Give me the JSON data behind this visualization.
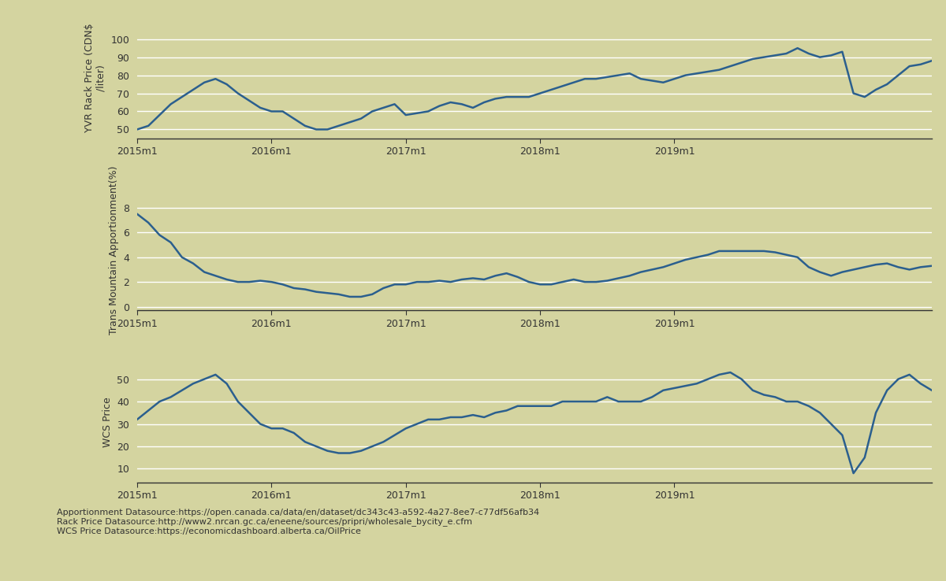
{
  "background_color": "#d4d4a0",
  "line_color": "#2b5f8e",
  "line_width": 1.8,
  "label_fontsize": 9,
  "tick_fontsize": 9,
  "footer_fontsize": 8,
  "footer_text": "Apportionment Datasource:https://open.canada.ca/data/en/dataset/dc343c43-a592-4a27-8ee7-c77df56afb34\nRack Price Datasource:http://www2.nrcan.gc.ca/eneene/sources/pripri/wholesale_bycity_e.cfm\nWCS Price Datasource:https://economicdashboard.alberta.ca/OilPrice",
  "x_tick_labels": [
    "2015m1",
    "2016m1",
    "2017m1",
    "2018m1",
    "2019m1"
  ],
  "x_tick_positions": [
    0,
    12,
    24,
    36,
    48
  ],
  "panel1_ylabel": "YVR Rack Price (CDN$\n/liter)",
  "panel2_ylabel": "Trans Mountain Apportionment(%)",
  "panel3_ylabel": "WCS Price",
  "panel1_ylim": [
    45,
    112
  ],
  "panel1_yticks": [
    50,
    60,
    70,
    80,
    90,
    100
  ],
  "panel2_ylim": [
    -0.3,
    9.5
  ],
  "panel2_yticks": [
    0,
    2,
    4,
    6,
    8
  ],
  "panel3_ylim": [
    4,
    58
  ],
  "panel3_yticks": [
    10,
    20,
    30,
    40,
    50
  ],
  "yvr_rack": [
    50,
    52,
    58,
    64,
    68,
    72,
    76,
    78,
    75,
    70,
    66,
    62,
    60,
    60,
    56,
    52,
    50,
    50,
    52,
    54,
    56,
    60,
    62,
    64,
    58,
    59,
    60,
    63,
    65,
    64,
    62,
    65,
    67,
    68,
    68,
    68,
    70,
    72,
    74,
    76,
    78,
    78,
    79,
    80,
    81,
    78,
    77,
    76,
    78,
    80,
    81,
    82,
    83,
    85,
    87,
    89,
    90,
    91,
    92,
    95,
    92,
    90,
    91,
    93,
    70,
    68,
    72,
    75,
    80,
    85,
    86,
    88
  ],
  "apportionment": [
    7.5,
    6.8,
    5.8,
    5.2,
    4.0,
    3.5,
    2.8,
    2.5,
    2.2,
    2.0,
    2.0,
    2.1,
    2.0,
    1.8,
    1.5,
    1.4,
    1.2,
    1.1,
    1.0,
    0.8,
    0.8,
    1.0,
    1.5,
    1.8,
    1.8,
    2.0,
    2.0,
    2.1,
    2.0,
    2.2,
    2.3,
    2.2,
    2.5,
    2.7,
    2.4,
    2.0,
    1.8,
    1.8,
    2.0,
    2.2,
    2.0,
    2.0,
    2.1,
    2.3,
    2.5,
    2.8,
    3.0,
    3.2,
    3.5,
    3.8,
    4.0,
    4.2,
    4.5,
    4.5,
    4.5,
    4.5,
    4.5,
    4.4,
    4.2,
    4.0,
    3.2,
    2.8,
    2.5,
    2.8,
    3.0,
    3.2,
    3.4,
    3.5,
    3.2,
    3.0,
    3.2,
    3.3
  ],
  "wcs_price": [
    32,
    36,
    40,
    42,
    45,
    48,
    50,
    52,
    48,
    40,
    35,
    30,
    28,
    28,
    26,
    22,
    20,
    18,
    17,
    17,
    18,
    20,
    22,
    25,
    28,
    30,
    32,
    32,
    33,
    33,
    34,
    33,
    35,
    36,
    38,
    38,
    38,
    38,
    40,
    40,
    40,
    40,
    42,
    40,
    40,
    40,
    42,
    45,
    46,
    47,
    48,
    50,
    52,
    53,
    50,
    45,
    43,
    42,
    40,
    40,
    38,
    35,
    30,
    25,
    8,
    15,
    35,
    45,
    50,
    52,
    48,
    45
  ]
}
